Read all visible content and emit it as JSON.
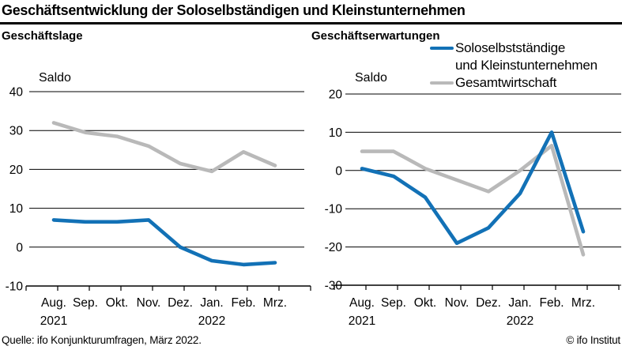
{
  "header": {
    "title": "Geschäftsentwicklung der Soloselbständigen und Kleinstunternehmen"
  },
  "colors": {
    "solo_blue": "#1271b6",
    "gesamt_gray": "#b9b9b9",
    "text": "#000000",
    "grid": "#000000"
  },
  "legend": {
    "position": "top-right",
    "items": [
      {
        "label_lines": [
          "Soloselbstständige",
          "und Kleinstunternehmen"
        ],
        "color": "#1271b6"
      },
      {
        "label_lines": [
          "Gesamtwirtschaft"
        ],
        "color": "#b9b9b9"
      }
    ]
  },
  "chart_data": [
    {
      "type": "line",
      "title": "Geschäftslage",
      "axis_label": "Saldo",
      "categories": [
        "Aug.",
        "Sep.",
        "Okt.",
        "Nov.",
        "Dez.",
        "Jan.",
        "Feb.",
        "Mrz."
      ],
      "year_labels": [
        {
          "text": "2021",
          "index": 0
        },
        {
          "text": "2022",
          "index": 5
        }
      ],
      "ylim": [
        -10,
        40
      ],
      "yticks": [
        40,
        30,
        20,
        10,
        0,
        -10
      ],
      "grid": true,
      "series": [
        {
          "name": "Soloselbstständige und Kleinstunternehmen",
          "color": "#1271b6",
          "values": [
            7,
            6.5,
            6.5,
            7,
            0,
            -3.5,
            -4.5,
            -4
          ]
        },
        {
          "name": "Gesamtwirtschaft",
          "color": "#b9b9b9",
          "values": [
            32,
            29.5,
            28.5,
            26,
            21.5,
            19.5,
            24.5,
            21
          ]
        }
      ]
    },
    {
      "type": "line",
      "title": "Geschäftserwartungen",
      "axis_label": "Saldo",
      "categories": [
        "Aug.",
        "Sep.",
        "Okt.",
        "Nov.",
        "Dez.",
        "Jan.",
        "Feb.",
        "Mrz."
      ],
      "year_labels": [
        {
          "text": "2021",
          "index": 0
        },
        {
          "text": "2022",
          "index": 5
        }
      ],
      "ylim": [
        -30,
        20
      ],
      "yticks": [
        20,
        10,
        0,
        -10,
        -20,
        -30
      ],
      "grid": true,
      "series": [
        {
          "name": "Soloselbstständige und Kleinstunternehmen",
          "color": "#1271b6",
          "values": [
            0.5,
            -1.5,
            -7,
            -19,
            -15,
            -6,
            10,
            -16
          ]
        },
        {
          "name": "Gesamtwirtschaft",
          "color": "#b9b9b9",
          "values": [
            5,
            5,
            0.5,
            -2.5,
            -5.5,
            0,
            6.5,
            -22
          ]
        }
      ]
    }
  ],
  "footer": {
    "source": "Quelle: ifo Konjunkturumfragen, März 2022.",
    "copyright": "© ifo Institut"
  }
}
